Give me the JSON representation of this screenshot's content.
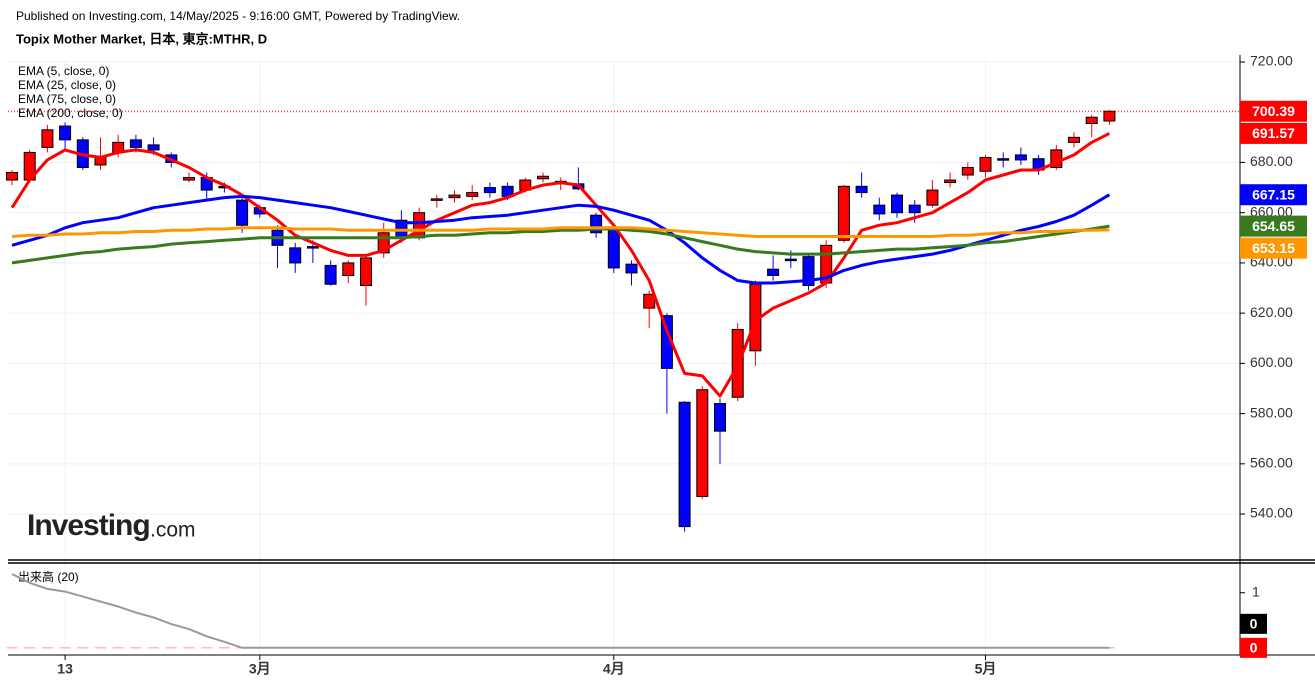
{
  "source": "Published on Investing.com, 14/May/2025 - 9:16:00 GMT, Powered by TradingView.",
  "watermark": {
    "brand": "Investing",
    "suffix": ".com"
  },
  "chart_data": [
    {
      "type": "candlestick",
      "title": "Topix Mother Market, 日本, 東京:MTHR, D",
      "categories": [
        null,
        null,
        null,
        "13",
        null,
        null,
        null,
        null,
        null,
        null,
        null,
        null,
        null,
        null,
        "3月",
        null,
        null,
        null,
        null,
        null,
        null,
        null,
        null,
        null,
        null,
        null,
        null,
        null,
        null,
        null,
        null,
        null,
        null,
        null,
        "4月",
        null,
        null,
        null,
        null,
        null,
        null,
        null,
        null,
        null,
        null,
        null,
        null,
        null,
        null,
        null,
        null,
        null,
        null,
        null,
        null,
        "5月",
        null,
        null,
        null,
        null,
        null,
        null,
        null
      ],
      "open": [
        673,
        673,
        686,
        694.5,
        689,
        679,
        684,
        689,
        687,
        683,
        673,
        674,
        670.5,
        665,
        662,
        653,
        646,
        646.5,
        639,
        635,
        631,
        644,
        657,
        650,
        665,
        666,
        666.5,
        670,
        670.5,
        669,
        673.5,
        671.5,
        671.5,
        659,
        653,
        639.5,
        622,
        619,
        584.5,
        547,
        584,
        586.5,
        605,
        637.5,
        641.5,
        642.5,
        632,
        649,
        670.5,
        663,
        667,
        663,
        663,
        672,
        675,
        676.5,
        681.5,
        683,
        681.5,
        678,
        688,
        695.5,
        696.5
      ],
      "high": [
        677,
        685,
        695,
        696,
        690,
        690,
        691,
        691,
        690,
        684,
        676,
        676,
        672,
        667,
        663,
        655,
        648,
        649,
        641,
        641,
        643,
        656,
        661,
        662,
        667,
        669,
        671,
        672,
        672,
        674,
        676,
        674,
        678,
        660,
        655,
        641,
        629,
        620,
        585,
        591,
        586,
        616,
        633,
        643,
        645,
        644,
        649,
        671,
        676,
        666,
        668,
        665,
        673,
        676,
        680,
        683,
        684,
        686,
        683,
        687,
        692,
        699,
        701
      ],
      "low": [
        671,
        672,
        684,
        685,
        677,
        677,
        682,
        684,
        683,
        678,
        672,
        665,
        668,
        652,
        658,
        638,
        636,
        640,
        631,
        632,
        623,
        642,
        648,
        649,
        662,
        664,
        665,
        666,
        665,
        668,
        672,
        669,
        669,
        650,
        636,
        631,
        614,
        580,
        533,
        546,
        560,
        585,
        599,
        633,
        638,
        629,
        630,
        648,
        666,
        657,
        658,
        656,
        662,
        670,
        673,
        674,
        678,
        679,
        675,
        677,
        686,
        690,
        695
      ],
      "close": [
        676,
        684,
        693,
        689,
        678,
        682,
        688,
        686,
        685,
        680,
        674,
        669,
        670,
        655,
        659.5,
        647,
        640,
        646,
        631.5,
        640,
        642,
        652,
        650,
        660,
        665.5,
        667,
        668,
        668,
        666.5,
        673,
        674.5,
        672.5,
        669.5,
        652,
        638,
        636,
        627.5,
        598,
        535,
        589.5,
        573,
        613.5,
        631.5,
        635,
        641,
        631,
        647,
        670.5,
        668,
        659.5,
        660,
        660,
        669,
        673,
        678,
        682,
        681,
        681,
        677,
        685,
        690,
        698,
        700.39
      ],
      "up_color": "#ff0000",
      "down_color": "#0000ff",
      "series": [
        {
          "name": "EMA (5, close, 0)",
          "color": "#ff0000",
          "values": [
            662,
            673,
            681,
            685,
            683,
            682,
            684,
            685,
            684,
            681,
            678,
            674,
            671,
            667,
            662,
            657,
            651,
            648,
            645,
            643,
            643,
            645,
            649,
            653,
            657,
            660,
            663,
            664,
            666,
            669,
            671,
            672,
            671,
            663,
            655,
            645,
            633,
            613,
            596,
            595,
            587,
            599,
            617,
            622,
            625,
            628,
            632,
            642,
            653,
            655,
            656,
            658,
            660,
            664,
            668,
            673,
            675,
            677,
            677,
            680,
            683,
            688,
            691.57
          ]
        },
        {
          "name": "EMA (25, close, 0)",
          "color": "#0000ff",
          "values": [
            647,
            649,
            651,
            654,
            656,
            657,
            658,
            660,
            662,
            663,
            664,
            665,
            666,
            666.5,
            666,
            665,
            664,
            663,
            662,
            660.5,
            659,
            657.5,
            656,
            656,
            656.5,
            657,
            658,
            658.5,
            659,
            660,
            661,
            662,
            663,
            662.5,
            661,
            659,
            657,
            653,
            648,
            642,
            637,
            633,
            632,
            632,
            632.5,
            633,
            634,
            637,
            639,
            640.5,
            641.5,
            642.5,
            643.5,
            645,
            647,
            649,
            651,
            653,
            654.5,
            656.5,
            659,
            663,
            667.15
          ]
        },
        {
          "name": "EMA (75, close, 0)",
          "color": "#3a7a1e",
          "values": [
            640,
            641,
            642,
            643,
            644,
            644.5,
            645.5,
            646,
            646.5,
            647.5,
            648,
            648.5,
            649,
            649.5,
            650,
            650,
            650,
            650,
            650,
            650,
            650,
            650,
            650,
            650.5,
            651,
            651,
            651.5,
            652,
            652,
            652.5,
            652.5,
            653,
            653,
            653.5,
            653.5,
            653,
            652.5,
            651.5,
            650,
            648.5,
            647,
            645.5,
            644.5,
            644,
            643.5,
            643.5,
            643.5,
            644,
            644.5,
            645,
            645.5,
            645.5,
            646,
            646.5,
            647,
            648,
            648.5,
            649.5,
            650.5,
            651.5,
            652.5,
            653.5,
            654.65
          ]
        },
        {
          "name": "EMA (200, close, 0)",
          "color": "#ff9800",
          "values": [
            650.5,
            651,
            651,
            651.5,
            651.5,
            652,
            652,
            652.5,
            652.5,
            653,
            653,
            653.5,
            653.5,
            654,
            654,
            654,
            653.5,
            653.5,
            653.5,
            653,
            653,
            653,
            653,
            653,
            653,
            653,
            653,
            653.5,
            653.5,
            653.5,
            653.5,
            654,
            654,
            654,
            654,
            654,
            653.5,
            653,
            652.5,
            652,
            651.5,
            651,
            650.5,
            650.5,
            650.5,
            650.5,
            650.5,
            650.5,
            650.5,
            650.5,
            650.5,
            650.5,
            650.5,
            651,
            651,
            651.5,
            652,
            652,
            652.5,
            652.5,
            653,
            653,
            653.15
          ]
        }
      ],
      "ylim": [
        521.7,
        720.8
      ],
      "yticks": [
        {
          "value": 720,
          "label": "720.00"
        },
        {
          "value": 700,
          "label": "700.00"
        },
        {
          "value": 680,
          "label": "680.00"
        },
        {
          "value": 660,
          "label": "660.00"
        },
        {
          "value": 640,
          "label": "640.00"
        },
        {
          "value": 620,
          "label": "620.00"
        },
        {
          "value": 600,
          "label": "600.00"
        },
        {
          "value": 580,
          "label": "580.00"
        },
        {
          "value": 560,
          "label": "560.00"
        },
        {
          "value": 540,
          "label": "540.00"
        }
      ],
      "grid": true,
      "last_price_line": true
    },
    {
      "type": "volume",
      "title": "出来高 (20)",
      "values": [
        0,
        0,
        0,
        0,
        0,
        0,
        0,
        0,
        0,
        0,
        0,
        0,
        0,
        0,
        0,
        0,
        0,
        0,
        0,
        0,
        0,
        0,
        0,
        0,
        0,
        0,
        0,
        0,
        0,
        0,
        0,
        0,
        0,
        0,
        0,
        0,
        0,
        0,
        0,
        0,
        0,
        0,
        0,
        0,
        0,
        0,
        0,
        0,
        0,
        0,
        0,
        0,
        0,
        0,
        0,
        0,
        0,
        0,
        0,
        0,
        0,
        0,
        0
      ],
      "color": "#ff0000",
      "ma_values": [
        1.34,
        1.18,
        1.07,
        1.02,
        0.93,
        0.84,
        0.75,
        0.64,
        0.55,
        0.43,
        0.34,
        0.21,
        0.11,
        0,
        0,
        0,
        0,
        0,
        0,
        0,
        0,
        0,
        0,
        0,
        0,
        0,
        0,
        0,
        0,
        0,
        0,
        0,
        0,
        0,
        0,
        0,
        0,
        0,
        0,
        0,
        0,
        0,
        0,
        0,
        0,
        0,
        0,
        0,
        0,
        0,
        0,
        0,
        0,
        0,
        0,
        0,
        0,
        0,
        0,
        0,
        0,
        0,
        0
      ],
      "ma_color": "#999999",
      "ylim": [
        -0.13,
        1.54
      ],
      "yticks": [
        1
      ]
    }
  ]
}
